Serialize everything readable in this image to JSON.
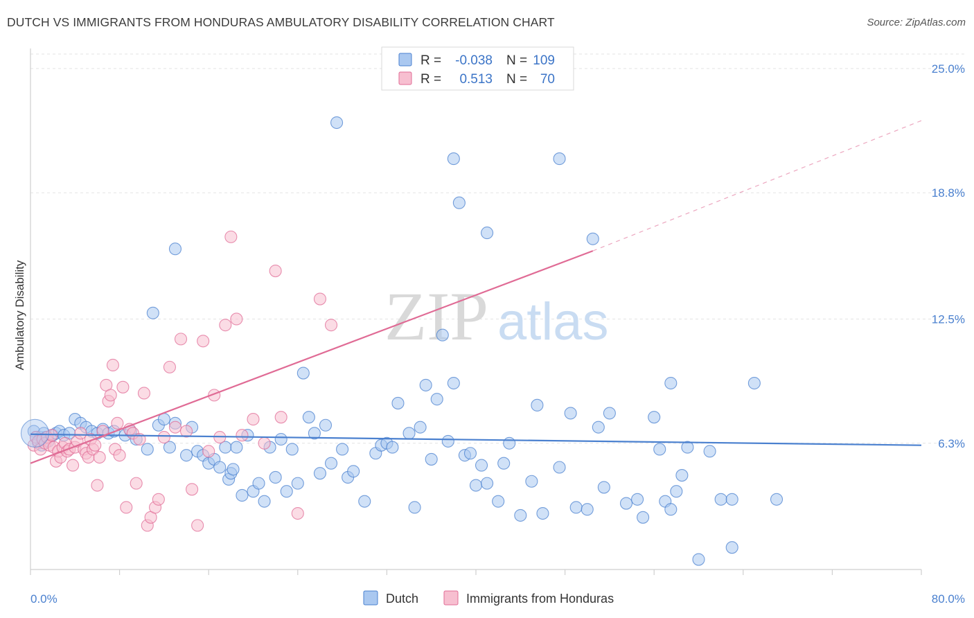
{
  "title": "DUTCH VS IMMIGRANTS FROM HONDURAS AMBULATORY DISABILITY CORRELATION CHART",
  "source": "Source: ZipAtlas.com",
  "watermark": {
    "zip": "ZIP",
    "atlas": "atlas"
  },
  "legend": {
    "r_label": "R =",
    "n_label": "N =",
    "series": [
      {
        "name": "Dutch",
        "r": "-0.038",
        "n": "109",
        "fill": "#aac8f0",
        "stroke": "#4a80cf"
      },
      {
        "name": "Immigrants from Honduras",
        "r": "0.513",
        "n": "70",
        "fill": "#f7bfd0",
        "stroke": "#e06b95"
      }
    ]
  },
  "chart_data": {
    "type": "scatter",
    "ylabel": "Ambulatory Disability",
    "x_ticks": [
      "0.0%",
      "80.0%"
    ],
    "y_ticks": [
      "6.3%",
      "12.5%",
      "18.8%",
      "25.0%"
    ],
    "xlim": [
      0,
      80
    ],
    "ylim": [
      0,
      26
    ],
    "series": [
      {
        "name": "Dutch",
        "color": "#4a80cf",
        "fill": "#aac8f0",
        "trend": {
          "x": [
            0,
            80
          ],
          "y": [
            6.75,
            6.2
          ],
          "style": "solid"
        },
        "points": [
          [
            0.3,
            6.9
          ],
          [
            0.5,
            6.6
          ],
          [
            0.7,
            6.3
          ],
          [
            0.9,
            6.6
          ],
          [
            1.0,
            6.2
          ],
          [
            1.2,
            6.8
          ],
          [
            1.4,
            6.6
          ],
          [
            1.6,
            6.4
          ],
          [
            2.0,
            6.7
          ],
          [
            2.3,
            6.8
          ],
          [
            2.6,
            6.9
          ],
          [
            3.0,
            6.7
          ],
          [
            3.5,
            6.8
          ],
          [
            4.0,
            7.5
          ],
          [
            4.5,
            7.3
          ],
          [
            5.0,
            7.1
          ],
          [
            5.5,
            6.9
          ],
          [
            6.0,
            6.8
          ],
          [
            6.5,
            7.0
          ],
          [
            7.0,
            6.8
          ],
          [
            7.5,
            6.9
          ],
          [
            8.5,
            6.7
          ],
          [
            9.0,
            6.9
          ],
          [
            9.5,
            6.5
          ],
          [
            10.5,
            6.0
          ],
          [
            11.5,
            7.2
          ],
          [
            12.0,
            7.5
          ],
          [
            12.5,
            6.1
          ],
          [
            13.0,
            7.3
          ],
          [
            14.0,
            5.7
          ],
          [
            14.5,
            7.1
          ],
          [
            15.0,
            5.9
          ],
          [
            15.5,
            5.7
          ],
          [
            16.0,
            5.3
          ],
          [
            16.5,
            5.5
          ],
          [
            17.0,
            5.1
          ],
          [
            17.5,
            6.1
          ],
          [
            17.8,
            4.5
          ],
          [
            18.0,
            4.8
          ],
          [
            18.2,
            5.0
          ],
          [
            18.5,
            6.1
          ],
          [
            19.0,
            3.7
          ],
          [
            19.5,
            6.7
          ],
          [
            20.0,
            3.9
          ],
          [
            20.5,
            4.3
          ],
          [
            21.0,
            3.4
          ],
          [
            21.5,
            6.1
          ],
          [
            22.0,
            4.6
          ],
          [
            22.5,
            6.5
          ],
          [
            23.0,
            3.9
          ],
          [
            23.5,
            6.0
          ],
          [
            24.0,
            4.3
          ],
          [
            24.5,
            9.8
          ],
          [
            25.0,
            7.6
          ],
          [
            25.5,
            6.8
          ],
          [
            26.0,
            4.8
          ],
          [
            26.5,
            7.2
          ],
          [
            27.0,
            5.3
          ],
          [
            28.0,
            6.0
          ],
          [
            28.5,
            4.6
          ],
          [
            29.0,
            4.9
          ],
          [
            30.0,
            3.4
          ],
          [
            31.0,
            5.8
          ],
          [
            31.5,
            6.2
          ],
          [
            32.0,
            6.3
          ],
          [
            32.5,
            6.1
          ],
          [
            33.0,
            8.3
          ],
          [
            34.0,
            6.8
          ],
          [
            34.5,
            3.1
          ],
          [
            35.0,
            7.1
          ],
          [
            35.5,
            9.2
          ],
          [
            36.0,
            5.5
          ],
          [
            36.5,
            8.5
          ],
          [
            37.0,
            11.7
          ],
          [
            37.5,
            6.4
          ],
          [
            38.0,
            9.3
          ],
          [
            39.0,
            5.7
          ],
          [
            39.5,
            5.8
          ],
          [
            40.0,
            4.2
          ],
          [
            40.5,
            5.2
          ],
          [
            41.0,
            4.3
          ],
          [
            42.0,
            3.4
          ],
          [
            42.5,
            5.3
          ],
          [
            43.0,
            6.3
          ],
          [
            44.0,
            2.7
          ],
          [
            45.0,
            4.4
          ],
          [
            45.5,
            8.2
          ],
          [
            46.0,
            2.8
          ],
          [
            47.5,
            5.1
          ],
          [
            48.5,
            7.8
          ],
          [
            49.0,
            3.1
          ],
          [
            50.0,
            3.0
          ],
          [
            51.0,
            7.1
          ],
          [
            51.5,
            4.1
          ],
          [
            52.0,
            7.8
          ],
          [
            53.5,
            3.3
          ],
          [
            54.5,
            3.5
          ],
          [
            55.0,
            2.6
          ],
          [
            56.0,
            7.6
          ],
          [
            56.5,
            6.0
          ],
          [
            57.0,
            3.4
          ],
          [
            57.5,
            3.0
          ],
          [
            58.0,
            3.9
          ],
          [
            58.5,
            4.7
          ],
          [
            59.0,
            6.1
          ],
          [
            61.0,
            5.9
          ],
          [
            62.0,
            3.5
          ],
          [
            63.0,
            1.1
          ],
          [
            65.0,
            9.3
          ]
        ]
      },
      {
        "name": "Immigrants from Honduras",
        "color": "#e06b95",
        "fill": "#f7bfd0",
        "trend": {
          "x": [
            0,
            50.5
          ],
          "y": [
            5.3,
            15.9
          ],
          "style": "solid"
        },
        "trend_dashed": {
          "x": [
            50.5,
            80
          ],
          "y": [
            15.9,
            22.4
          ],
          "style": "dashed"
        },
        "points": [
          [
            0.3,
            6.2
          ],
          [
            0.5,
            6.6
          ],
          [
            0.7,
            6.4
          ],
          [
            0.9,
            6.0
          ],
          [
            1.1,
            6.5
          ],
          [
            1.3,
            6.3
          ],
          [
            1.5,
            6.6
          ],
          [
            1.7,
            6.2
          ],
          [
            1.9,
            6.7
          ],
          [
            2.1,
            6.1
          ],
          [
            2.3,
            5.4
          ],
          [
            2.5,
            5.9
          ],
          [
            2.7,
            5.6
          ],
          [
            2.9,
            6.1
          ],
          [
            3.1,
            6.3
          ],
          [
            3.3,
            5.9
          ],
          [
            3.5,
            6.0
          ],
          [
            3.8,
            5.2
          ],
          [
            4.0,
            6.1
          ],
          [
            4.2,
            6.4
          ],
          [
            4.5,
            6.8
          ],
          [
            4.8,
            6.0
          ],
          [
            5.0,
            5.8
          ],
          [
            5.2,
            5.6
          ],
          [
            5.4,
            6.5
          ],
          [
            5.6,
            6.0
          ],
          [
            5.8,
            6.2
          ],
          [
            6.0,
            4.2
          ],
          [
            6.2,
            5.6
          ],
          [
            6.5,
            6.9
          ],
          [
            6.8,
            9.2
          ],
          [
            7.0,
            8.4
          ],
          [
            7.2,
            8.7
          ],
          [
            7.4,
            10.2
          ],
          [
            7.6,
            6.0
          ],
          [
            7.8,
            7.3
          ],
          [
            8.0,
            5.7
          ],
          [
            8.3,
            9.1
          ],
          [
            8.6,
            3.1
          ],
          [
            8.9,
            7.0
          ],
          [
            9.2,
            6.8
          ],
          [
            9.5,
            4.3
          ],
          [
            9.8,
            6.5
          ],
          [
            10.2,
            8.8
          ],
          [
            10.5,
            2.2
          ],
          [
            10.8,
            2.6
          ],
          [
            11.2,
            3.1
          ],
          [
            11.5,
            3.5
          ],
          [
            12.0,
            6.6
          ],
          [
            12.5,
            10.1
          ],
          [
            13.0,
            7.1
          ],
          [
            13.5,
            11.5
          ],
          [
            14.0,
            6.9
          ],
          [
            14.5,
            4.0
          ],
          [
            15.0,
            2.2
          ],
          [
            15.5,
            11.4
          ],
          [
            16.0,
            5.9
          ],
          [
            16.5,
            8.7
          ],
          [
            17.0,
            6.6
          ],
          [
            17.5,
            12.2
          ],
          [
            18.0,
            16.6
          ],
          [
            18.5,
            12.5
          ],
          [
            19.0,
            6.7
          ],
          [
            20.0,
            7.5
          ],
          [
            21.0,
            6.3
          ],
          [
            22.0,
            14.9
          ],
          [
            22.5,
            7.6
          ],
          [
            24.0,
            2.8
          ],
          [
            26.0,
            13.5
          ],
          [
            27.0,
            12.2
          ]
        ]
      }
    ],
    "extra_points": {
      "Dutch": [
        [
          27.5,
          22.3
        ],
        [
          38.0,
          20.5
        ],
        [
          38.5,
          18.3
        ],
        [
          47.5,
          20.5
        ],
        [
          50.5,
          16.5
        ],
        [
          57.5,
          9.3
        ],
        [
          60.0,
          0.5
        ],
        [
          63.0,
          3.5
        ],
        [
          67.0,
          3.5
        ],
        [
          41.0,
          16.8
        ],
        [
          13.0,
          16.0
        ],
        [
          11.0,
          12.8
        ]
      ]
    }
  },
  "bottom_legend": [
    {
      "label": "Dutch"
    },
    {
      "label": "Immigrants from Honduras"
    }
  ]
}
